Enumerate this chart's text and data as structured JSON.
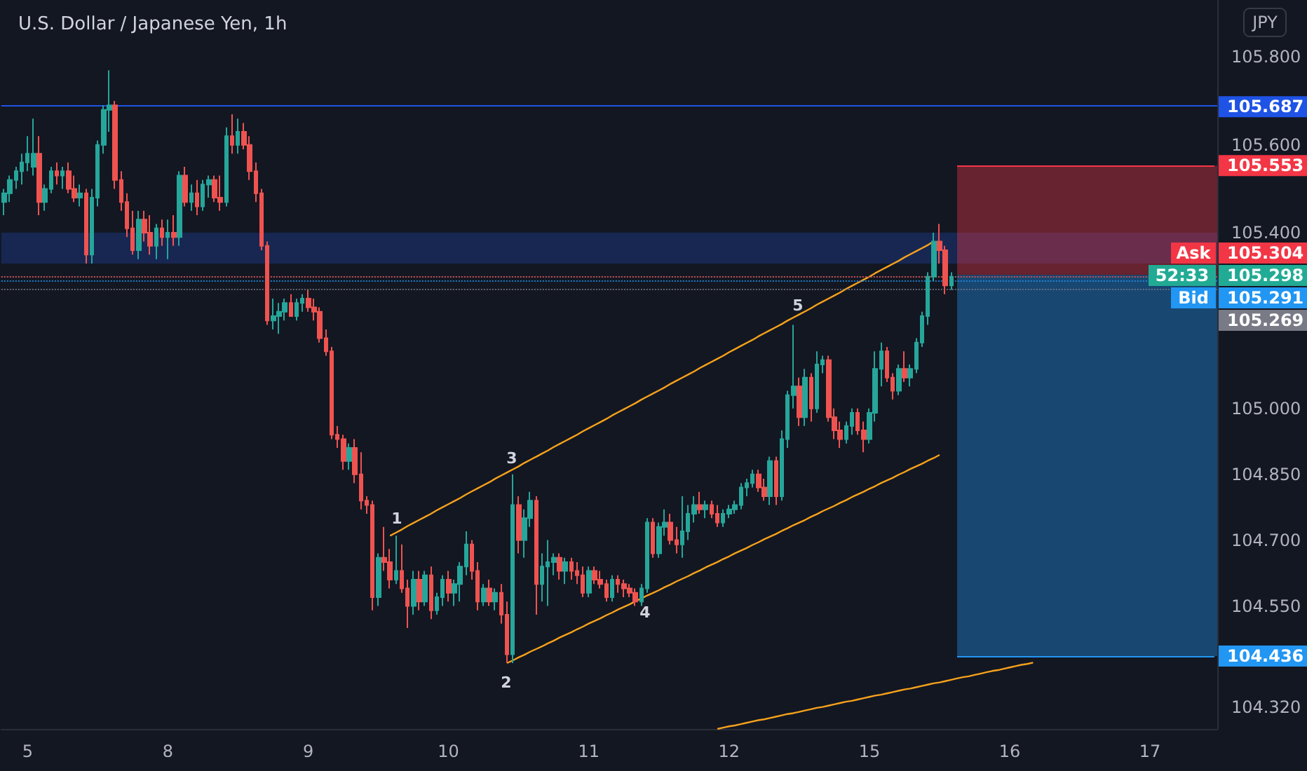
{
  "chart_data": {
    "type": "candlestick",
    "title": "U.S. Dollar / Japanese Yen, 1h",
    "categories": [
      null,
      null,
      null,
      null,
      "5",
      null,
      null,
      null,
      null,
      null,
      null,
      null,
      null,
      null,
      null,
      null,
      null,
      null,
      null,
      null,
      null,
      null,
      null,
      null,
      null,
      null,
      null,
      null,
      "8",
      null,
      null,
      null,
      null,
      null,
      null,
      null,
      null,
      null,
      null,
      null,
      null,
      null,
      null,
      null,
      null,
      null,
      null,
      null,
      null,
      null,
      null,
      null,
      "9",
      null,
      null,
      null,
      null,
      null,
      null,
      null,
      null,
      null,
      null,
      null,
      null,
      null,
      null,
      null,
      null,
      null,
      null,
      null,
      null,
      null,
      null,
      null,
      "10",
      null,
      null,
      null,
      null,
      null,
      null,
      null,
      null,
      null,
      null,
      null,
      null,
      null,
      null,
      null,
      null,
      null,
      null,
      null,
      null,
      null,
      null,
      null,
      "11",
      null,
      null,
      null,
      null,
      null,
      null,
      null,
      null,
      null,
      null,
      null,
      null,
      null,
      null,
      null,
      null,
      null,
      null,
      null,
      null,
      null,
      null,
      null,
      "12",
      null,
      null,
      null,
      null,
      null,
      null,
      null,
      null,
      null,
      null,
      null,
      null,
      null,
      null,
      null,
      null,
      null,
      null,
      null,
      null,
      null,
      null,
      null,
      "15",
      null,
      null,
      null,
      null,
      null,
      null,
      null,
      null,
      null,
      null,
      null,
      null,
      null,
      null,
      null,
      null,
      null,
      null,
      null,
      null,
      null,
      null,
      null,
      "16",
      null,
      null,
      null,
      null,
      null,
      null,
      null,
      null,
      null,
      null,
      null,
      null,
      null,
      null,
      null,
      null,
      null,
      null,
      null,
      null,
      null,
      null,
      null,
      "17",
      null,
      null,
      null,
      null,
      null,
      null,
      null,
      null,
      null,
      null,
      null
    ],
    "ylim": [
      104.27,
      105.93
    ],
    "yticks": [
      {
        "value": 105.8,
        "label": "105.800"
      },
      {
        "value": 105.6,
        "label": "105.600"
      },
      {
        "value": 105.4,
        "label": "105.400"
      },
      {
        "value": 105.0,
        "label": "105.000"
      },
      {
        "value": 104.85,
        "label": "104.850"
      },
      {
        "value": 104.7,
        "label": "104.700"
      },
      {
        "value": 104.55,
        "label": "104.550"
      },
      {
        "value": 104.32,
        "label": "104.320"
      }
    ],
    "grid": false,
    "series": [
      {
        "ohlc": [
          [
            105.47,
            105.5,
            105.44,
            105.49
          ],
          [
            105.49,
            105.53,
            105.47,
            105.52
          ],
          [
            105.52,
            105.55,
            105.5,
            105.54
          ],
          [
            105.54,
            105.58,
            105.51,
            105.56
          ],
          [
            105.56,
            105.62,
            105.54,
            105.58
          ],
          [
            105.55,
            105.66,
            105.53,
            105.58
          ],
          [
            105.58,
            105.62,
            105.44,
            105.47
          ],
          [
            105.47,
            105.51,
            105.45,
            105.5
          ],
          [
            105.5,
            105.55,
            105.49,
            105.54
          ],
          [
            105.54,
            105.56,
            105.51,
            105.53
          ],
          [
            105.53,
            105.55,
            105.5,
            105.54
          ],
          [
            105.54,
            105.56,
            105.49,
            105.5
          ],
          [
            105.5,
            105.53,
            105.47,
            105.48
          ],
          [
            105.48,
            105.51,
            105.46,
            105.49
          ],
          [
            105.49,
            105.5,
            105.33,
            105.35
          ],
          [
            105.35,
            105.5,
            105.33,
            105.48
          ],
          [
            105.48,
            105.61,
            105.46,
            105.6
          ],
          [
            105.6,
            105.69,
            105.58,
            105.68
          ],
          [
            105.68,
            105.77,
            105.63,
            105.69
          ],
          [
            105.69,
            105.7,
            105.5,
            105.52
          ],
          [
            105.52,
            105.54,
            105.45,
            105.47
          ],
          [
            105.47,
            105.49,
            105.39,
            105.41
          ],
          [
            105.41,
            105.45,
            105.35,
            105.36
          ],
          [
            105.36,
            105.45,
            105.34,
            105.43
          ],
          [
            105.43,
            105.45,
            105.38,
            105.4
          ],
          [
            105.4,
            105.44,
            105.35,
            105.37
          ],
          [
            105.37,
            105.42,
            105.34,
            105.41
          ],
          [
            105.41,
            105.43,
            105.37,
            105.39
          ],
          [
            105.39,
            105.43,
            105.34,
            105.4
          ],
          [
            105.4,
            105.44,
            105.37,
            105.39
          ],
          [
            105.39,
            105.54,
            105.37,
            105.53
          ],
          [
            105.53,
            105.55,
            105.46,
            105.47
          ],
          [
            105.47,
            105.51,
            105.45,
            105.49
          ],
          [
            105.49,
            105.52,
            105.44,
            105.46
          ],
          [
            105.46,
            105.52,
            105.45,
            105.51
          ],
          [
            105.51,
            105.53,
            105.48,
            105.52
          ],
          [
            105.52,
            105.53,
            105.47,
            105.48
          ],
          [
            105.48,
            105.53,
            105.45,
            105.47
          ],
          [
            105.47,
            105.64,
            105.46,
            105.62
          ],
          [
            105.62,
            105.67,
            105.58,
            105.6
          ],
          [
            105.6,
            105.66,
            105.58,
            105.63
          ],
          [
            105.63,
            105.65,
            105.59,
            105.6
          ],
          [
            105.6,
            105.62,
            105.52,
            105.54
          ],
          [
            105.54,
            105.56,
            105.47,
            105.49
          ],
          [
            105.49,
            105.5,
            105.36,
            105.37
          ],
          [
            105.37,
            105.38,
            105.19,
            105.2
          ],
          [
            105.2,
            105.25,
            105.18,
            105.21
          ],
          [
            105.21,
            105.24,
            105.17,
            105.22
          ],
          [
            105.22,
            105.25,
            105.2,
            105.24
          ],
          [
            105.24,
            105.26,
            105.21,
            105.21
          ],
          [
            105.21,
            105.25,
            105.2,
            105.24
          ],
          [
            105.24,
            105.26,
            105.22,
            105.25
          ],
          [
            105.25,
            105.27,
            105.22,
            105.23
          ],
          [
            105.23,
            105.25,
            105.2,
            105.22
          ],
          [
            105.22,
            105.23,
            105.15,
            105.16
          ],
          [
            105.16,
            105.18,
            105.12,
            105.13
          ],
          [
            105.13,
            105.14,
            104.93,
            104.94
          ],
          [
            104.94,
            104.96,
            104.91,
            104.93
          ],
          [
            104.93,
            104.94,
            104.86,
            104.88
          ],
          [
            104.88,
            104.92,
            104.86,
            104.91
          ],
          [
            104.91,
            104.93,
            104.83,
            104.85
          ],
          [
            104.85,
            104.9,
            104.77,
            104.79
          ],
          [
            104.79,
            104.8,
            104.76,
            104.78
          ],
          [
            104.78,
            104.79,
            104.54,
            104.57
          ],
          [
            104.57,
            104.67,
            104.55,
            104.66
          ],
          [
            104.66,
            104.73,
            104.63,
            104.65
          ],
          [
            104.65,
            104.68,
            104.59,
            104.61
          ],
          [
            104.61,
            104.71,
            104.6,
            104.63
          ],
          [
            104.63,
            104.69,
            104.58,
            104.59
          ],
          [
            104.59,
            104.61,
            104.5,
            104.55
          ],
          [
            104.55,
            104.63,
            104.53,
            104.61
          ],
          [
            104.61,
            104.63,
            104.54,
            104.56
          ],
          [
            104.56,
            104.63,
            104.55,
            104.62
          ],
          [
            104.62,
            104.64,
            104.52,
            104.54
          ],
          [
            104.54,
            104.58,
            104.53,
            104.57
          ],
          [
            104.57,
            104.62,
            104.55,
            104.61
          ],
          [
            104.61,
            104.63,
            104.56,
            104.58
          ],
          [
            104.58,
            104.61,
            104.55,
            104.6
          ],
          [
            104.6,
            104.65,
            104.56,
            104.64
          ],
          [
            104.64,
            104.72,
            104.62,
            104.69
          ],
          [
            104.69,
            104.7,
            104.61,
            104.63
          ],
          [
            104.63,
            104.65,
            104.54,
            104.56
          ],
          [
            104.56,
            104.6,
            104.55,
            104.59
          ],
          [
            104.59,
            104.61,
            104.55,
            104.56
          ],
          [
            104.56,
            104.59,
            104.54,
            104.58
          ],
          [
            104.58,
            104.6,
            104.51,
            104.53
          ],
          [
            104.53,
            104.56,
            104.42,
            104.44
          ],
          [
            104.44,
            104.85,
            104.42,
            104.78
          ],
          [
            104.78,
            104.8,
            104.67,
            104.7
          ],
          [
            104.7,
            104.77,
            104.66,
            104.75
          ],
          [
            104.75,
            104.81,
            104.73,
            104.79
          ],
          [
            104.79,
            104.8,
            104.53,
            104.6
          ],
          [
            104.6,
            104.67,
            104.56,
            104.64
          ],
          [
            104.64,
            104.7,
            104.55,
            104.65
          ],
          [
            104.65,
            104.67,
            104.62,
            104.66
          ],
          [
            104.66,
            104.67,
            104.61,
            104.63
          ],
          [
            104.63,
            104.66,
            104.6,
            104.65
          ],
          [
            104.65,
            104.66,
            104.61,
            104.63
          ],
          [
            104.63,
            104.65,
            104.6,
            104.62
          ],
          [
            104.62,
            104.64,
            104.57,
            104.58
          ],
          [
            104.58,
            104.64,
            104.57,
            104.63
          ],
          [
            104.63,
            104.64,
            104.6,
            104.61
          ],
          [
            104.61,
            104.63,
            104.59,
            104.6
          ],
          [
            104.6,
            104.61,
            104.56,
            104.57
          ],
          [
            104.57,
            104.62,
            104.56,
            104.61
          ],
          [
            104.61,
            104.62,
            104.58,
            104.6
          ],
          [
            104.6,
            104.61,
            104.57,
            104.59
          ],
          [
            104.59,
            104.6,
            104.57,
            104.58
          ],
          [
            104.58,
            104.59,
            104.55,
            104.56
          ],
          [
            104.56,
            104.6,
            104.55,
            104.59
          ],
          [
            104.59,
            104.75,
            104.58,
            104.74
          ],
          [
            104.74,
            104.75,
            104.66,
            104.67
          ],
          [
            104.67,
            104.74,
            104.66,
            104.73
          ],
          [
            104.73,
            104.77,
            104.71,
            104.74
          ],
          [
            104.74,
            104.76,
            104.69,
            104.7
          ],
          [
            104.7,
            104.73,
            104.67,
            104.69
          ],
          [
            104.69,
            104.8,
            104.66,
            104.72
          ],
          [
            104.72,
            104.78,
            104.7,
            104.76
          ],
          [
            104.76,
            104.8,
            104.74,
            104.78
          ],
          [
            104.78,
            104.81,
            104.76,
            104.77
          ],
          [
            104.77,
            104.79,
            104.75,
            104.78
          ],
          [
            104.78,
            104.79,
            104.75,
            104.76
          ],
          [
            104.76,
            104.78,
            104.73,
            104.74
          ],
          [
            104.74,
            104.77,
            104.73,
            104.76
          ],
          [
            104.76,
            104.78,
            104.75,
            104.77
          ],
          [
            104.77,
            104.79,
            104.76,
            104.78
          ],
          [
            104.78,
            104.83,
            104.77,
            104.82
          ],
          [
            104.82,
            104.84,
            104.8,
            104.83
          ],
          [
            104.83,
            104.86,
            104.82,
            104.85
          ],
          [
            104.85,
            104.86,
            104.81,
            104.82
          ],
          [
            104.82,
            104.84,
            104.79,
            104.8
          ],
          [
            104.8,
            104.89,
            104.78,
            104.88
          ],
          [
            104.88,
            104.89,
            104.78,
            104.8
          ],
          [
            104.8,
            104.95,
            104.79,
            104.93
          ],
          [
            104.93,
            105.04,
            104.91,
            105.03
          ],
          [
            105.03,
            105.19,
            105.0,
            105.05
          ],
          [
            105.05,
            105.07,
            104.96,
            104.98
          ],
          [
            104.98,
            105.09,
            104.96,
            105.07
          ],
          [
            105.07,
            105.08,
            104.97,
            105.0
          ],
          [
            105.0,
            105.13,
            104.99,
            105.1
          ],
          [
            105.1,
            105.12,
            105.08,
            105.11
          ],
          [
            105.11,
            105.12,
            104.97,
            104.98
          ],
          [
            104.98,
            105.0,
            104.93,
            104.95
          ],
          [
            104.95,
            104.97,
            104.91,
            104.93
          ],
          [
            104.93,
            104.97,
            104.92,
            104.96
          ],
          [
            104.96,
            105.0,
            104.94,
            104.99
          ],
          [
            104.99,
            105.0,
            104.94,
            104.95
          ],
          [
            104.95,
            104.97,
            104.9,
            104.93
          ],
          [
            104.93,
            105.0,
            104.92,
            104.99
          ],
          [
            104.99,
            105.13,
            104.97,
            105.09
          ],
          [
            105.09,
            105.15,
            105.05,
            105.13
          ],
          [
            105.13,
            105.14,
            105.06,
            105.07
          ],
          [
            105.07,
            105.08,
            105.02,
            105.04
          ],
          [
            105.04,
            105.1,
            105.03,
            105.09
          ],
          [
            105.09,
            105.13,
            105.06,
            105.07
          ],
          [
            105.07,
            105.1,
            105.05,
            105.09
          ],
          [
            105.09,
            105.16,
            105.08,
            105.15
          ],
          [
            105.15,
            105.22,
            105.14,
            105.21
          ],
          [
            105.21,
            105.31,
            105.19,
            105.3
          ],
          [
            105.3,
            105.4,
            105.29,
            105.38
          ],
          [
            105.38,
            105.42,
            105.33,
            105.36
          ],
          [
            105.36,
            105.37,
            105.26,
            105.28
          ],
          [
            105.28,
            105.31,
            105.27,
            105.3
          ],
          null,
          null,
          null,
          null,
          null,
          null,
          null,
          null,
          null,
          null,
          null,
          null,
          null,
          null,
          null,
          null,
          null,
          null,
          null,
          null,
          null,
          null,
          null,
          null,
          null,
          null,
          null,
          null,
          null,
          null,
          null,
          null,
          null,
          null,
          null,
          null,
          null,
          null,
          null,
          null,
          null,
          null,
          null,
          null,
          null
        ]
      },
      {
        "type": "line",
        "color": "#f7a21b",
        "values": [
          null,
          null,
          null,
          null,
          null,
          null,
          null,
          null,
          null,
          null,
          null,
          null,
          null,
          null,
          null,
          null,
          null,
          null,
          null,
          null,
          null,
          null,
          null,
          null,
          null,
          null,
          null,
          null,
          null,
          null,
          null,
          null,
          null,
          null,
          null,
          null,
          null,
          null,
          null,
          null,
          null,
          null,
          null,
          null,
          null,
          null,
          null,
          null,
          null,
          null,
          null,
          null,
          null,
          null,
          null,
          null,
          null,
          null,
          null,
          null,
          null,
          null,
          null,
          null,
          null,
          null,
          104.71,
          104.717,
          104.724,
          104.732,
          104.739,
          104.746,
          104.753,
          104.76,
          104.768,
          104.775,
          104.782,
          104.789,
          104.796,
          104.804,
          104.811,
          104.818,
          104.825,
          104.832,
          104.84,
          104.847,
          104.854,
          104.861,
          104.868,
          104.876,
          104.883,
          104.89,
          104.897,
          104.904,
          104.912,
          104.919,
          104.926,
          104.933,
          104.94,
          104.948,
          104.955,
          104.962,
          104.969,
          104.976,
          104.984,
          104.991,
          104.998,
          105.005,
          105.012,
          105.02,
          105.027,
          105.034,
          105.041,
          105.048,
          105.056,
          105.063,
          105.07,
          105.077,
          105.084,
          105.092,
          105.099,
          105.106,
          105.113,
          105.12,
          105.128,
          105.135,
          105.142,
          105.149,
          105.156,
          105.164,
          105.171,
          105.178,
          105.185,
          105.192,
          105.2,
          105.207,
          105.214,
          105.221,
          105.228,
          105.236,
          105.243,
          105.25,
          105.257,
          105.264,
          105.272,
          105.279,
          105.286,
          105.293,
          105.3,
          105.308,
          105.315,
          105.322,
          105.329,
          105.336,
          105.344,
          105.351,
          105.358,
          105.365,
          105.372,
          105.38,
          null,
          null,
          null,
          null,
          null,
          null,
          null,
          null,
          null,
          null,
          null,
          null,
          null,
          null,
          null,
          null,
          null,
          null,
          null,
          null,
          null,
          null,
          null,
          null,
          null,
          null,
          null,
          null,
          null,
          null,
          null,
          null,
          null,
          null,
          null,
          null,
          null,
          null,
          null,
          null,
          null,
          null,
          null,
          null,
          null,
          null,
          null,
          null
        ]
      },
      {
        "type": "line",
        "color": "#f7a21b",
        "values": [
          null,
          null,
          null,
          null,
          null,
          null,
          null,
          null,
          null,
          null,
          null,
          null,
          null,
          null,
          null,
          null,
          null,
          null,
          null,
          null,
          null,
          null,
          null,
          null,
          null,
          null,
          null,
          null,
          null,
          null,
          null,
          null,
          null,
          null,
          null,
          null,
          null,
          null,
          null,
          null,
          null,
          null,
          null,
          null,
          null,
          null,
          null,
          null,
          null,
          null,
          null,
          null,
          null,
          null,
          null,
          null,
          null,
          null,
          null,
          null,
          null,
          null,
          null,
          null,
          null,
          null,
          null,
          null,
          null,
          null,
          null,
          null,
          null,
          null,
          null,
          null,
          null,
          null,
          null,
          null,
          null,
          null,
          null,
          null,
          null,
          null,
          104.42,
          104.426,
          104.433,
          104.439,
          104.446,
          104.452,
          104.458,
          104.465,
          104.471,
          104.478,
          104.484,
          104.49,
          104.497,
          104.503,
          104.51,
          104.516,
          104.522,
          104.529,
          104.535,
          104.542,
          104.548,
          104.554,
          104.561,
          104.567,
          104.574,
          104.58,
          104.586,
          104.593,
          104.599,
          104.606,
          104.612,
          104.618,
          104.625,
          104.631,
          104.638,
          104.644,
          104.65,
          104.657,
          104.663,
          104.67,
          104.676,
          104.682,
          104.689,
          104.695,
          104.702,
          104.708,
          104.714,
          104.721,
          104.727,
          104.734,
          104.74,
          104.746,
          104.753,
          104.759,
          104.766,
          104.772,
          104.778,
          104.785,
          104.791,
          104.798,
          104.804,
          104.81,
          104.817,
          104.823,
          104.83,
          104.836,
          104.842,
          104.849,
          104.855,
          104.862,
          104.868,
          104.874,
          104.881,
          104.887,
          104.894,
          null,
          null,
          null,
          null,
          null,
          null,
          null,
          null,
          null,
          null,
          null,
          null,
          null,
          null,
          null,
          null,
          null,
          null,
          null,
          null,
          null,
          null,
          null,
          null,
          null,
          null,
          null,
          null,
          null,
          null,
          null,
          null,
          null,
          null,
          null,
          null,
          null,
          null,
          null,
          null,
          null,
          null,
          null,
          null,
          null,
          null,
          null
        ]
      },
      {
        "type": "line",
        "color": "#f7a21b",
        "values": [
          null,
          null,
          null,
          null,
          null,
          null,
          null,
          null,
          null,
          null,
          null,
          null,
          null,
          null,
          null,
          null,
          null,
          null,
          null,
          null,
          null,
          null,
          null,
          null,
          null,
          null,
          null,
          null,
          null,
          null,
          null,
          null,
          null,
          null,
          null,
          null,
          null,
          null,
          null,
          null,
          null,
          null,
          null,
          null,
          null,
          null,
          null,
          null,
          null,
          null,
          null,
          null,
          null,
          null,
          null,
          null,
          null,
          null,
          null,
          null,
          null,
          null,
          null,
          null,
          null,
          null,
          null,
          null,
          null,
          null,
          null,
          null,
          null,
          null,
          null,
          null,
          null,
          null,
          null,
          null,
          null,
          null,
          null,
          null,
          null,
          null,
          null,
          null,
          null,
          null,
          null,
          null,
          null,
          null,
          null,
          null,
          null,
          null,
          null,
          null,
          null,
          null,
          null,
          null,
          null,
          null,
          null,
          null,
          null,
          null,
          null,
          null,
          null,
          null,
          null,
          null,
          null,
          null,
          null,
          null,
          null,
          null,
          104.27,
          104.273,
          104.276,
          104.278,
          104.281,
          104.284,
          104.287,
          104.29,
          104.292,
          104.295,
          104.298,
          104.301,
          104.304,
          104.306,
          104.309,
          104.312,
          104.315,
          104.318,
          104.32,
          104.323,
          104.326,
          104.329,
          104.332,
          104.334,
          104.337,
          104.34,
          104.343,
          104.346,
          104.348,
          104.351,
          104.354,
          104.357,
          104.36,
          104.362,
          104.365,
          104.368,
          104.371,
          104.374,
          104.376,
          104.379,
          104.382,
          104.385,
          104.388,
          104.39,
          104.393,
          104.396,
          104.399,
          104.402,
          104.404,
          104.407,
          104.41,
          104.413,
          104.416,
          104.418,
          104.421,
          null,
          null,
          null,
          null,
          null,
          null,
          null,
          null,
          null,
          null,
          null,
          null,
          null,
          null,
          null,
          null,
          null,
          null,
          null,
          null,
          null,
          null,
          null,
          null,
          null,
          null,
          null,
          null,
          null,
          null,
          null
        ]
      }
    ],
    "bands": [
      {
        "axis": "y",
        "from": 105.33,
        "to": 105.4,
        "color": "#2962ff"
      },
      {
        "axis": "y",
        "from": 105.304,
        "to": 105.553,
        "color": "#f23645"
      },
      {
        "axis": "y",
        "from": 104.436,
        "to": 105.304,
        "color": "#2196f3"
      }
    ],
    "ref_lines": [
      {
        "axis": "y",
        "value": 105.687,
        "label": "105.687",
        "color": "#1e53e5",
        "line_style": "solid"
      },
      {
        "axis": "y",
        "value": 105.553,
        "label": "105.553",
        "color": "#f23645",
        "line_style": "solid"
      },
      {
        "axis": "y",
        "value": 105.298,
        "label": "105.298",
        "color": "#22ab94",
        "line_style": "dotted"
      },
      {
        "axis": "y",
        "value": 105.304,
        "label": "Ask 105.304",
        "color": "#f23645",
        "line_style": "dotted"
      },
      {
        "axis": "y",
        "value": 105.291,
        "label": "Bid 105.291",
        "color": "#2196f3",
        "line_style": "dotted"
      },
      {
        "axis": "y",
        "value": 105.269,
        "label": "105.269",
        "color": "#787b86",
        "line_style": "dotted"
      },
      {
        "axis": "y",
        "value": 104.436,
        "label": "104.436",
        "color": "#2196f3",
        "line_style": "solid"
      }
    ],
    "annotations": [
      "JPY",
      "1",
      "2",
      "3",
      "4",
      "5",
      "52:33"
    ]
  }
}
